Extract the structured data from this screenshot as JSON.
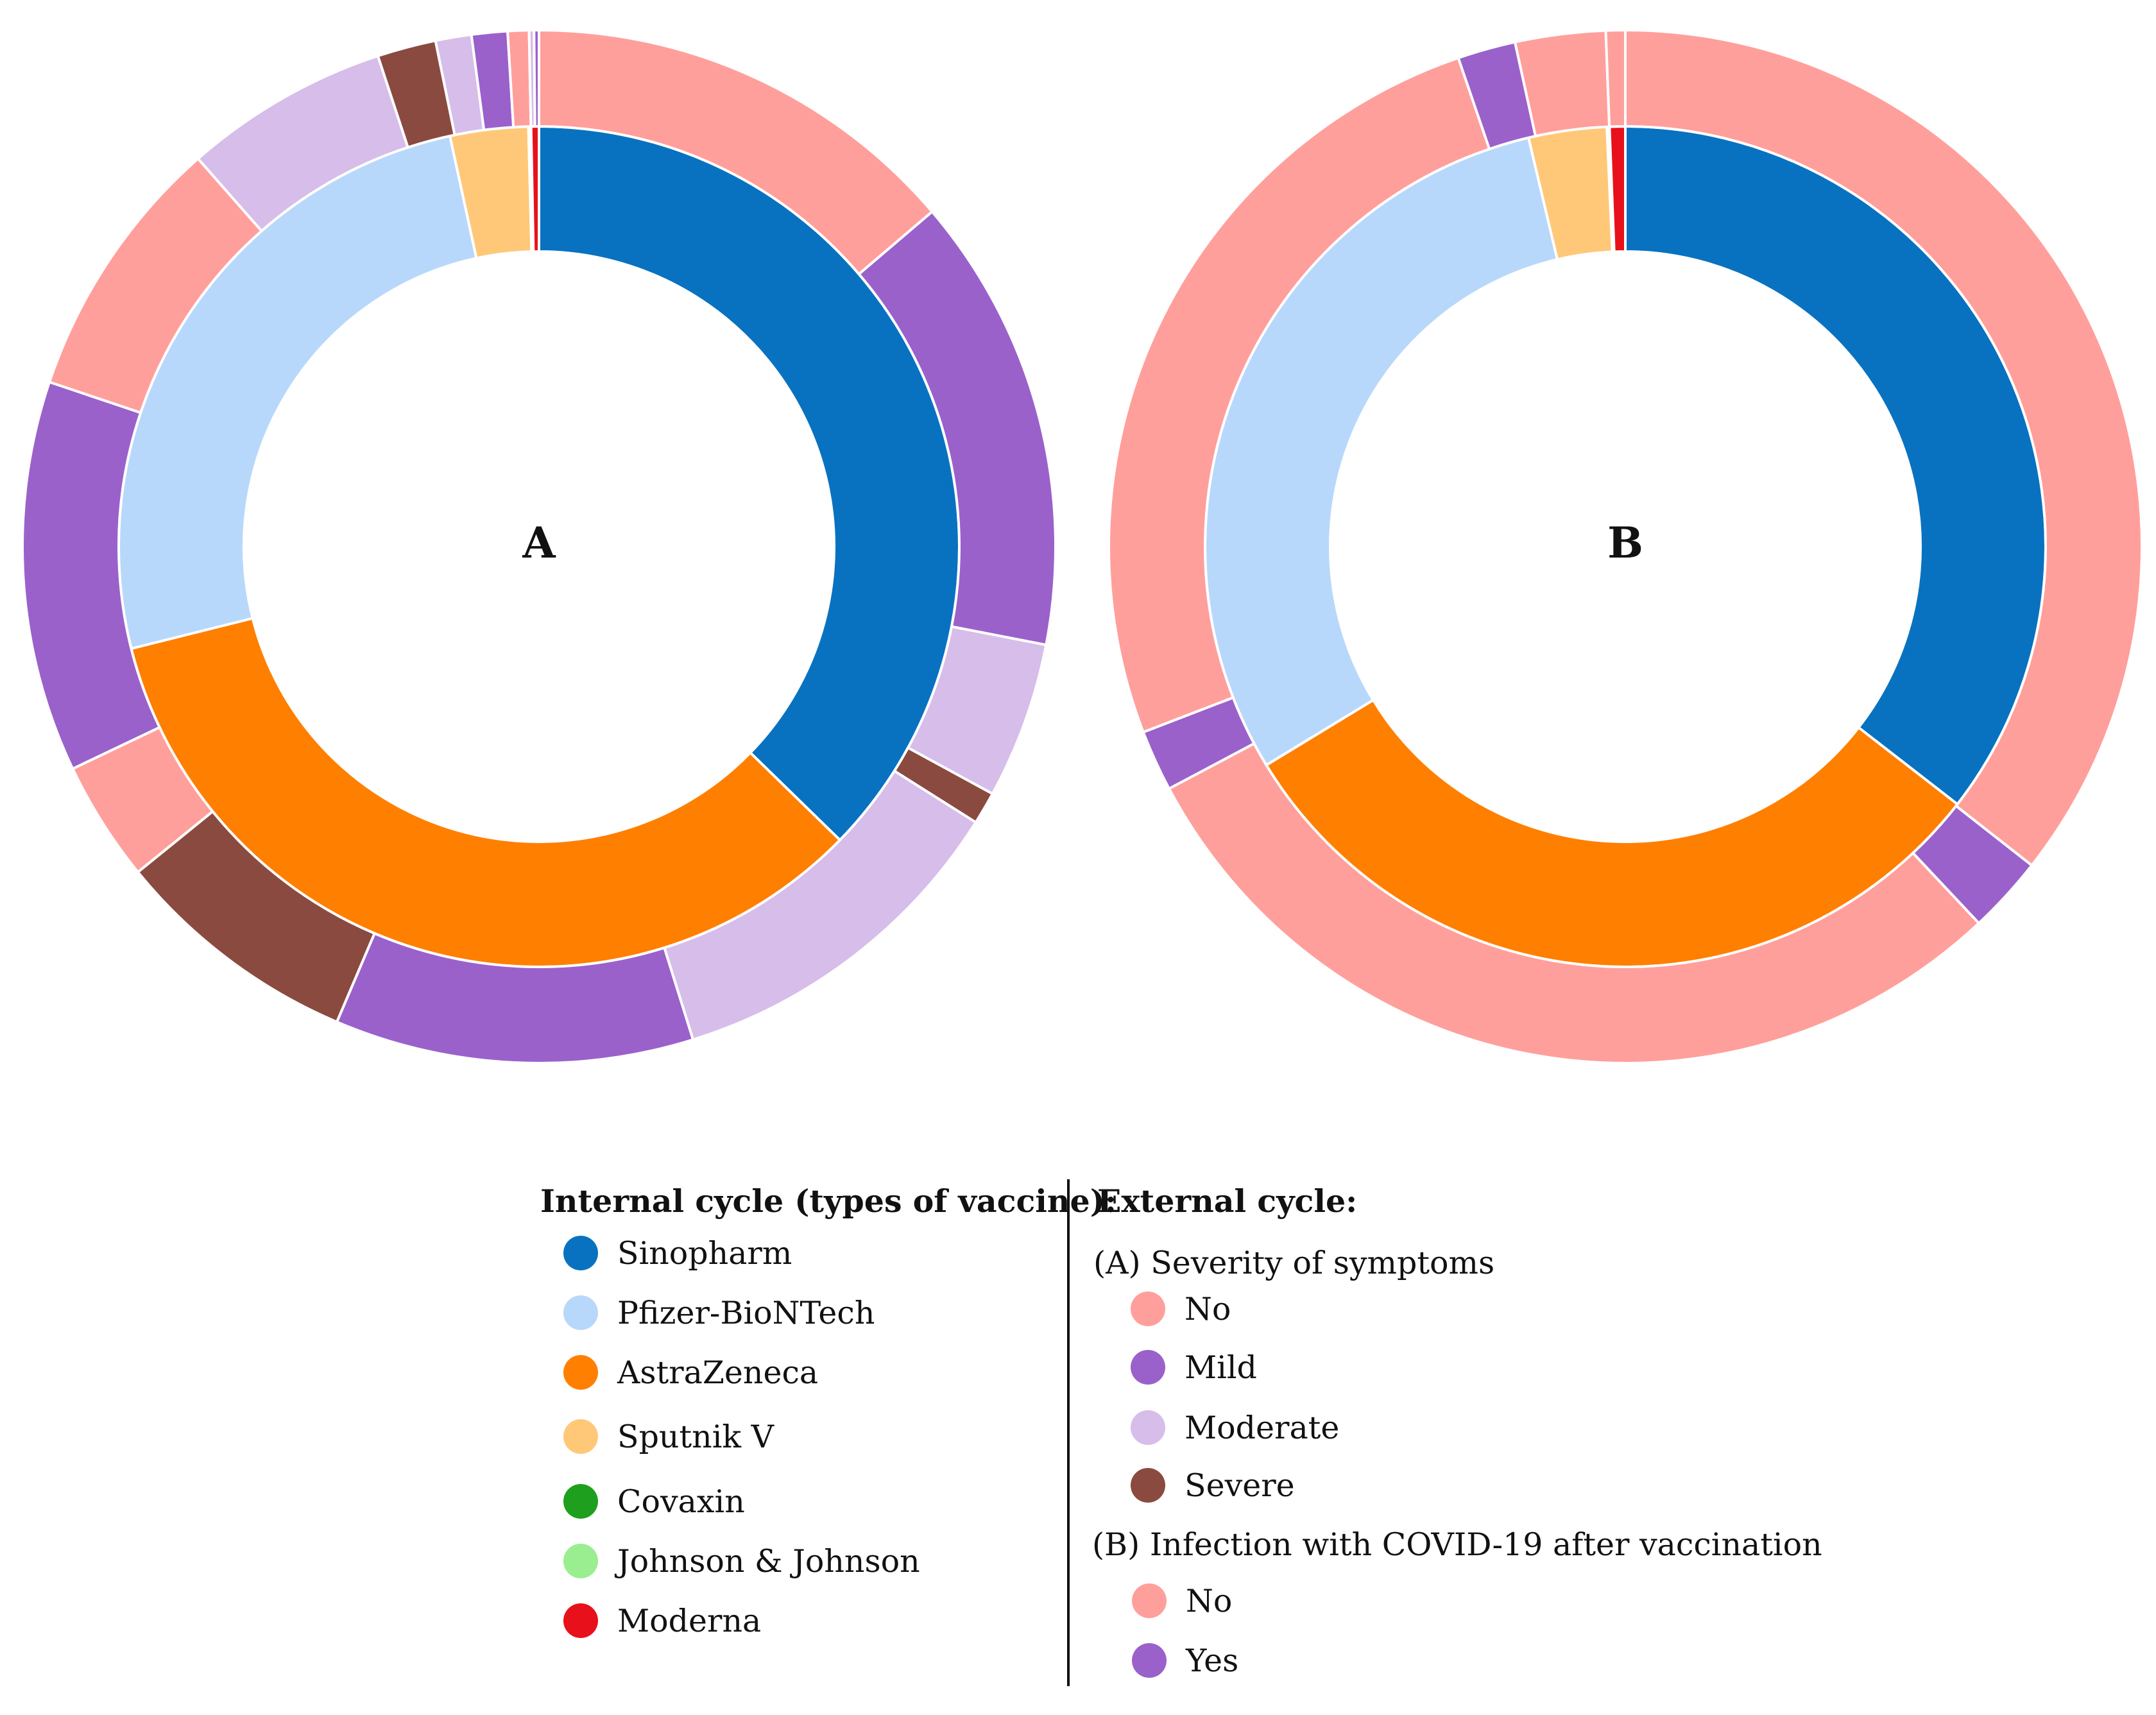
{
  "chart_data": [
    {
      "type": "pie",
      "subtype": "nested-donut",
      "center_label": "A",
      "inner_ring": {
        "name": "Internal cycle (types of vaccine)",
        "slices": [
          {
            "label": "Sinopharm",
            "value": 37.3,
            "color": "#0872c0"
          },
          {
            "label": "AstraZeneca",
            "value": 33.8,
            "color": "#ff7f00"
          },
          {
            "label": "Pfizer-BioNTech",
            "value": 25.5,
            "color": "#b8d8fb"
          },
          {
            "label": "Sputnik V",
            "value": 3.0,
            "color": "#ffc878"
          },
          {
            "label": "Covaxin",
            "value": 0.05,
            "color": "#1ea01e"
          },
          {
            "label": "Johnson & Johnson",
            "value": 0.05,
            "color": "#9aee90"
          },
          {
            "label": "Moderna",
            "value": 0.3,
            "color": "#e8101a"
          }
        ]
      },
      "outer_ring": {
        "name": "(A) Severity of symptoms",
        "slices": [
          {
            "vaccine": "Sinopharm",
            "category": "No",
            "value": 13.5
          },
          {
            "vaccine": "Sinopharm",
            "category": "Mild",
            "value": 14.0
          },
          {
            "vaccine": "Sinopharm",
            "category": "Moderate",
            "value": 4.8
          },
          {
            "vaccine": "Sinopharm",
            "category": "Severe",
            "value": 1.0
          },
          {
            "vaccine": "AstraZeneca",
            "category": "Moderate",
            "value": 11.0
          },
          {
            "vaccine": "AstraZeneca",
            "category": "Mild",
            "value": 11.0
          },
          {
            "vaccine": "AstraZeneca",
            "category": "Severe",
            "value": 7.6
          },
          {
            "vaccine": "AstraZeneca",
            "category": "No",
            "value": 3.7
          },
          {
            "vaccine": "Pfizer-BioNTech",
            "category": "Mild",
            "value": 12.0
          },
          {
            "vaccine": "Pfizer-BioNTech",
            "category": "No",
            "value": 8.2
          },
          {
            "vaccine": "Pfizer-BioNTech",
            "category": "Moderate",
            "value": 6.3
          },
          {
            "vaccine": "Sputnik V",
            "category": "Severe",
            "value": 1.8
          },
          {
            "vaccine": "Sputnik V",
            "category": "Moderate",
            "value": 1.1
          },
          {
            "vaccine": "Sputnik V",
            "category": "Mild",
            "value": 1.1
          },
          {
            "vaccine": "Sputnik V",
            "category": "No",
            "value": 0.65
          },
          {
            "vaccine": "Moderna",
            "category": "Moderate",
            "value": 0.15
          },
          {
            "vaccine": "Moderna",
            "category": "Mild",
            "value": 0.15
          }
        ]
      }
    },
    {
      "type": "pie",
      "subtype": "nested-donut",
      "center_label": "B",
      "inner_ring": {
        "name": "Internal cycle (types of vaccine)",
        "slices": [
          {
            "label": "Sinopharm",
            "value": 35.5,
            "color": "#0872c0"
          },
          {
            "label": "AstraZeneca",
            "value": 30.8,
            "color": "#ff7f00"
          },
          {
            "label": "Pfizer-BioNTech",
            "value": 30.0,
            "color": "#b8d8fb"
          },
          {
            "label": "Sputnik V",
            "value": 3.0,
            "color": "#ffc878"
          },
          {
            "label": "Covaxin",
            "value": 0.05,
            "color": "#1ea01e"
          },
          {
            "label": "Johnson & Johnson",
            "value": 0.05,
            "color": "#9aee90"
          },
          {
            "label": "Moderna",
            "value": 0.6,
            "color": "#e8101a"
          }
        ]
      },
      "outer_ring": {
        "name": "(B) Infection with COVID-19 after vaccination",
        "slices": [
          {
            "vaccine": "Sinopharm",
            "category": "No",
            "value": 35.3
          },
          {
            "vaccine": "Sinopharm",
            "category": "Yes",
            "value": 2.4
          },
          {
            "vaccine": "AstraZeneca",
            "category": "No",
            "value": 29.0
          },
          {
            "vaccine": "AstraZeneca",
            "category": "Yes",
            "value": 1.9
          },
          {
            "vaccine": "Pfizer-BioNTech",
            "category": "No",
            "value": 25.4
          },
          {
            "vaccine": "Pfizer-BioNTech",
            "category": "Yes",
            "value": 1.8
          },
          {
            "vaccine": "Sputnik V",
            "category": "No",
            "value": 2.8
          },
          {
            "vaccine": "Moderna",
            "category": "No",
            "value": 0.6
          }
        ]
      }
    }
  ],
  "legend": {
    "internal_heading": "Internal cycle (types of vaccine):",
    "internal_items": [
      {
        "label": "Sinopharm",
        "color": "#0872c0"
      },
      {
        "label": "Pfizer-BioNTech",
        "color": "#b8d8fb"
      },
      {
        "label": "AstraZeneca",
        "color": "#ff7f00"
      },
      {
        "label": "Sputnik V",
        "color": "#ffc878"
      },
      {
        "label": "Covaxin",
        "color": "#1ea01e"
      },
      {
        "label": "Johnson & Johnson",
        "color": "#9aee90"
      },
      {
        "label": "Moderna",
        "color": "#e8101a"
      }
    ],
    "external_heading": "External cycle:",
    "group_a_title": "(A) Severity of symptoms",
    "group_a_items": [
      {
        "label": "No",
        "color": "#ff9f9b"
      },
      {
        "label": "Mild",
        "color": "#9a61cb"
      },
      {
        "label": "Moderate",
        "color": "#d6bdea"
      },
      {
        "label": "Severe",
        "color": "#8b4a3f"
      }
    ],
    "group_b_title": "(B) Infection with COVID-19 after vaccination",
    "group_b_items": [
      {
        "label": "No",
        "color": "#ff9f9b"
      },
      {
        "label": "Yes",
        "color": "#9a61cb"
      }
    ]
  },
  "category_colors": {
    "No": "#ff9f9b",
    "Mild": "#9a61cb",
    "Moderate": "#d6bdea",
    "Severe": "#8b4a3f",
    "Yes": "#9a61cb"
  }
}
